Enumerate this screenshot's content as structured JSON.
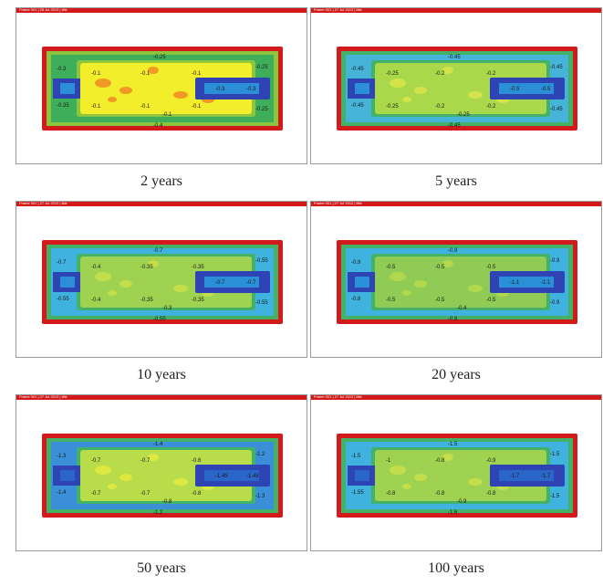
{
  "header_strip_color": "#d21a1a",
  "panels": [
    {
      "header": "Frame 001  |  26 Jul 2012  |  title",
      "caption": "2 years",
      "palette": {
        "edge": "#d21a1a",
        "ring": "#3fae5a",
        "ring2": "#8cc63f",
        "field": "#f2ee2b",
        "blob": "#f08a24",
        "notch": "#2f44b4",
        "notch_in": "#2a8fd6"
      },
      "field_labels": [
        "-0.1",
        "-0.1",
        "-0.1",
        "-0.1",
        "-0.1",
        "-0.1",
        "-0.1",
        "-0.3",
        "-0.3"
      ],
      "ring_labels": [
        "-0.3",
        "-0.25",
        "-0.35",
        "-0.25",
        "-0.4",
        "-0.25"
      ]
    },
    {
      "header": "Frame 001  |  27 Jul 2012  |  title",
      "caption": "5 years",
      "palette": {
        "edge": "#d21a1a",
        "ring": "#46b3d8",
        "ring2": "#43b167",
        "field": "#a9d84a",
        "blob": "#d9e64a",
        "notch": "#2f44b4",
        "notch_in": "#2a8fd6"
      },
      "field_labels": [
        "-0.25",
        "-0.2",
        "-0.2",
        "-0.25",
        "-0.2",
        "-0.2",
        "-0.25",
        "-0.5",
        "-0.5"
      ],
      "ring_labels": [
        "-0.45",
        "-0.45",
        "-0.45",
        "-0.45",
        "-0.45",
        "-0.45"
      ]
    },
    {
      "header": "Frame 001  |  27 Jul 2012  |  title",
      "caption": "10 years",
      "palette": {
        "edge": "#d21a1a",
        "ring": "#3fb2df",
        "ring2": "#43b167",
        "field": "#9fd250",
        "blob": "#c9e04a",
        "notch": "#2f44b4",
        "notch_in": "#2a8fd6"
      },
      "field_labels": [
        "-0.4",
        "-0.35",
        "-0.35",
        "-0.4",
        "-0.35",
        "-0.35",
        "-0.3",
        "-0.7",
        "-0.7"
      ],
      "ring_labels": [
        "-0.7",
        "-0.55",
        "-0.55",
        "-0.55",
        "-0.55",
        "-0.7"
      ]
    },
    {
      "header": "Frame 001  |  27 Jul 2012  |  title",
      "caption": "20 years",
      "palette": {
        "edge": "#d21a1a",
        "ring": "#3fb2df",
        "ring2": "#43b167",
        "field": "#8fcb55",
        "blob": "#b6dc4c",
        "notch": "#2f44b4",
        "notch_in": "#2a8fd6"
      },
      "field_labels": [
        "-0.5",
        "-0.5",
        "-0.5",
        "-0.5",
        "-0.5",
        "-0.5",
        "-0.4",
        "-1.1",
        "-1.1"
      ],
      "ring_labels": [
        "-0.9",
        "-0.9",
        "-0.8",
        "-0.9",
        "-0.8",
        "-0.9"
      ]
    },
    {
      "header": "Frame 001  |  27 Jul 2012  |  title",
      "caption": "50 years",
      "palette": {
        "edge": "#d21a1a",
        "ring": "#3a8fd8",
        "ring2": "#43b167",
        "field": "#b9dc4a",
        "blob": "#e3ea3e",
        "notch": "#2f44b4",
        "notch_in": "#2a66c8"
      },
      "field_labels": [
        "-0.7",
        "-0.7",
        "-0.6",
        "-0.7",
        "-0.7",
        "-0.8",
        "-0.8",
        "-1.45",
        "-1.45"
      ],
      "ring_labels": [
        "-1.3",
        "-1.2",
        "-1.4",
        "-1.3",
        "-1.2",
        "-1.4"
      ]
    },
    {
      "header": "Frame 001  |  27 Jul 2012  |  title",
      "caption": "100 years",
      "palette": {
        "edge": "#d21a1a",
        "ring": "#3fb2df",
        "ring2": "#43b167",
        "field": "#9fd250",
        "blob": "#c9e04a",
        "notch": "#2f44b4",
        "notch_in": "#2a66c8"
      },
      "field_labels": [
        "-1",
        "-0.8",
        "-0.9",
        "-0.8",
        "-0.8",
        "-0.8",
        "-0.9",
        "-1.7",
        "-1.7"
      ],
      "ring_labels": [
        "-1.5",
        "-1.5",
        "-1.55",
        "-1.5",
        "-1.6",
        "-1.5"
      ]
    }
  ]
}
